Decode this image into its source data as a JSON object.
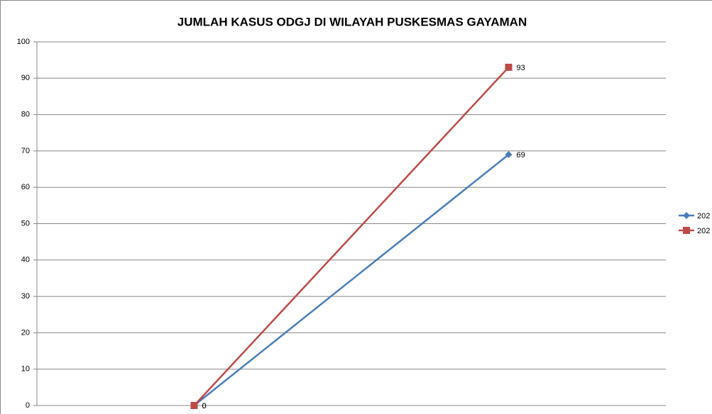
{
  "chart_data": {
    "type": "line",
    "title": "JUMLAH KASUS ODGJ DI WILAYAH PUSKESMAS GAYAMAN",
    "categories": [
      null,
      null
    ],
    "series": [
      {
        "name": "202",
        "color": "#4a7ebb",
        "marker": "diamond",
        "values": [
          0,
          69
        ]
      },
      {
        "name": "202",
        "color": "#be4b48",
        "marker": "square",
        "values": [
          0,
          93
        ]
      }
    ],
    "ylim": [
      0,
      100
    ],
    "yticks": [
      0,
      10,
      20,
      30,
      40,
      50,
      60,
      70,
      80,
      90,
      100
    ],
    "grid": true,
    "legend": "right"
  }
}
